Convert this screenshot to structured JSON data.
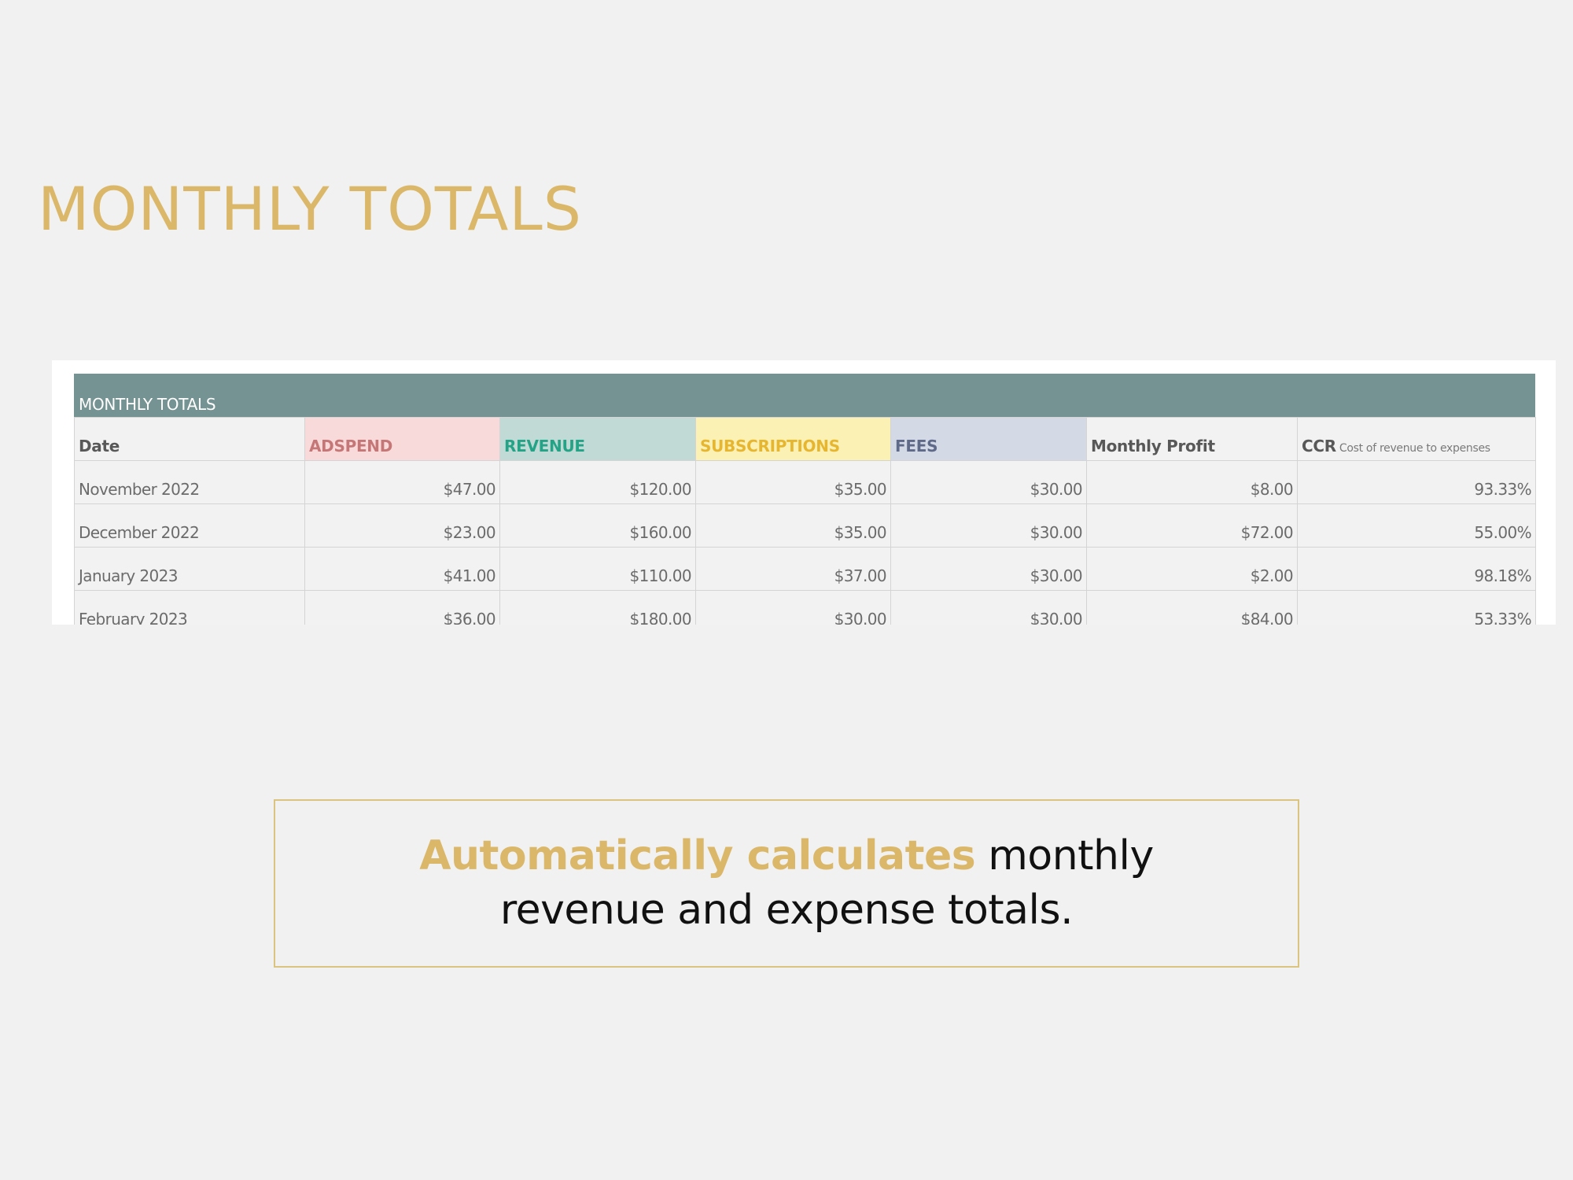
{
  "page": {
    "title": "MONTHLY TOTALS"
  },
  "sheet": {
    "header_title": "MONTHLY TOTALS",
    "columns": {
      "date": "Date",
      "adspend": "ADSPEND",
      "revenue": "REVENUE",
      "subscriptions": "SUBSCRIPTIONS",
      "fees": "FEES",
      "profit": "Monthly Profit",
      "ccr": "CCR",
      "ccr_note": "Cost of revenue to expenses"
    },
    "rows": [
      {
        "date": "November 2022",
        "adspend": "$47.00",
        "revenue": "$120.00",
        "subscriptions": "$35.00",
        "fees": "$30.00",
        "profit": "$8.00",
        "ccr": "93.33%"
      },
      {
        "date": "December 2022",
        "adspend": "$23.00",
        "revenue": "$160.00",
        "subscriptions": "$35.00",
        "fees": "$30.00",
        "profit": "$72.00",
        "ccr": "55.00%"
      },
      {
        "date": "January 2023",
        "adspend": "$41.00",
        "revenue": "$110.00",
        "subscriptions": "$37.00",
        "fees": "$30.00",
        "profit": "$2.00",
        "ccr": "98.18%"
      },
      {
        "date": "February 2023",
        "adspend": "$36.00",
        "revenue": "$180.00",
        "subscriptions": "$30.00",
        "fees": "$30.00",
        "profit": "$84.00",
        "ccr": "53.33%"
      }
    ]
  },
  "callout": {
    "highlight": "Automatically calculates",
    "text": " monthly revenue and expense totals."
  },
  "colors": {
    "accent_gold": "#dbb869",
    "header_teal": "#759392",
    "adspend": "#f9dada",
    "revenue": "#c2dad6",
    "subscriptions": "#fcf1b5",
    "fees": "#d4d9e6",
    "profit_text": "#9ccd8f"
  }
}
